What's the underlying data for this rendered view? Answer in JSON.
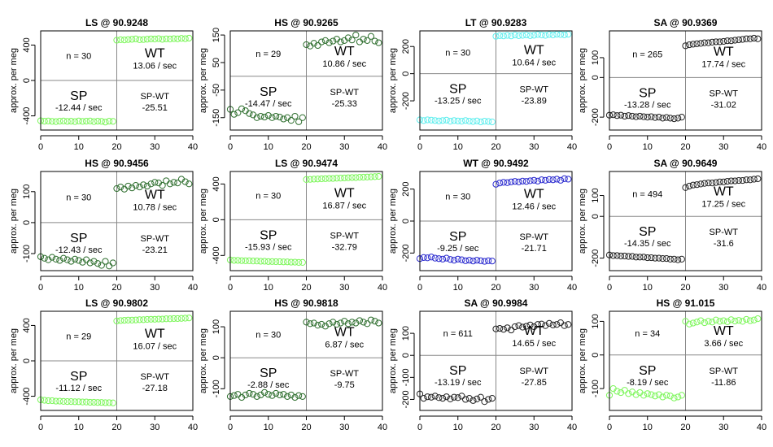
{
  "figure": {
    "ylabel": "approx. per meg",
    "x_ticks": [
      "0",
      "10",
      "20",
      "30",
      "40"
    ],
    "xlim": [
      0,
      40
    ],
    "split_x": 20,
    "colors": {
      "light_green": "#7CF65A",
      "dark_green": "#2E6E2E",
      "cyan": "#5FEEEE",
      "black": "#222222",
      "blue": "#2A2ACF",
      "grid_line": "#888888",
      "frame": "#000000"
    }
  },
  "chart_data": [
    {
      "type": "scatter",
      "title": "LS @ 90.9248",
      "color": "light_green",
      "n_label": "n = 30",
      "wt_label": "WT",
      "wt_rate": "13.06 / sec",
      "sp_label": "SP",
      "sp_rate": "-12.44 / sec",
      "spwt_label": "SP-WT",
      "spwt_value": "-25.51",
      "ylim": [
        -560,
        560
      ],
      "y_ticks": [
        -400,
        0,
        400
      ],
      "left_values": [
        -455,
        -460,
        -458,
        -462,
        -465,
        -460,
        -458,
        -462,
        -460,
        -465,
        -458,
        -462,
        -460,
        -458,
        -465,
        -460,
        -462,
        -470,
        -460,
        -462
      ],
      "right_values": [
        455,
        460,
        458,
        462,
        465,
        470,
        460,
        462,
        466,
        470,
        468,
        472,
        465,
        470,
        468,
        472,
        470,
        475,
        472,
        478
      ]
    },
    {
      "type": "scatter",
      "title": "HS @ 90.9265",
      "color": "dark_green",
      "n_label": "n = 29",
      "wt_label": "WT",
      "wt_rate": "10.86 / sec",
      "sp_label": "SP",
      "sp_rate": "-14.47 / sec",
      "spwt_label": "SP-WT",
      "spwt_value": "-25.33",
      "ylim": [
        -195,
        165
      ],
      "y_ticks": [
        -150,
        -50,
        50,
        150
      ],
      "left_values": [
        -120,
        -138,
        -132,
        -118,
        -125,
        -135,
        -140,
        -150,
        -145,
        -148,
        -142,
        -150,
        -145,
        -148,
        -155,
        -150,
        -160,
        -145,
        -165,
        -150
      ],
      "right_values": [
        115,
        110,
        120,
        112,
        125,
        130,
        122,
        128,
        135,
        125,
        130,
        140,
        132,
        150,
        125,
        135,
        130,
        145,
        128,
        122
      ]
    },
    {
      "type": "scatter",
      "title": "LT @ 90.9283",
      "color": "cyan",
      "n_label": "n = 30",
      "wt_label": "WT",
      "wt_rate": "10.64 / sec",
      "sp_label": "SP",
      "sp_rate": "-13.25 / sec",
      "spwt_label": "SP-WT",
      "spwt_value": "-23.89",
      "ylim": [
        -415,
        315
      ],
      "y_ticks": [
        -200,
        0,
        200
      ],
      "left_values": [
        -340,
        -345,
        -340,
        -342,
        -345,
        -348,
        -345,
        -342,
        -350,
        -345,
        -348,
        -350,
        -345,
        -350,
        -352,
        -348,
        -355,
        -350,
        -352,
        -355
      ],
      "right_values": [
        275,
        280,
        278,
        282,
        278,
        285,
        280,
        282,
        285,
        280,
        283,
        288,
        285,
        282,
        288,
        285,
        290,
        288,
        286,
        290
      ]
    },
    {
      "type": "scatter",
      "title": "SA @ 90.9369",
      "color": "black",
      "n_label": "n = 265",
      "wt_label": "WT",
      "wt_rate": "17.74 / sec",
      "sp_label": "SP",
      "sp_rate": "-13.28 / sec",
      "spwt_label": "SP-WT",
      "spwt_value": "-31.02",
      "ylim": [
        -265,
        235
      ],
      "y_ticks": [
        -200,
        0,
        100
      ],
      "left_values": [
        -190,
        -188,
        -192,
        -190,
        -195,
        -192,
        -195,
        -198,
        -195,
        -198,
        -200,
        -198,
        -202,
        -200,
        -205,
        -202,
        -205,
        -208,
        -205,
        -200
      ],
      "right_values": [
        160,
        165,
        168,
        170,
        172,
        175,
        175,
        178,
        180,
        180,
        182,
        185,
        185,
        188,
        190,
        192,
        195,
        195,
        198,
        195
      ]
    },
    {
      "type": "scatter",
      "title": "HS @ 90.9456",
      "color": "dark_green",
      "n_label": "n = 30",
      "wt_label": "WT",
      "wt_rate": "10.78 / sec",
      "sp_label": "SP",
      "sp_rate": "-12.43 / sec",
      "spwt_label": "SP-WT",
      "spwt_value": "-23.21",
      "ylim": [
        -155,
        165
      ],
      "y_ticks": [
        -100,
        0,
        100
      ],
      "left_values": [
        -110,
        -115,
        -120,
        -112,
        -118,
        -122,
        -115,
        -120,
        -125,
        -118,
        -122,
        -128,
        -120,
        -130,
        -125,
        -132,
        -138,
        -125,
        -140,
        -130
      ],
      "right_values": [
        110,
        115,
        108,
        118,
        112,
        120,
        115,
        122,
        118,
        125,
        130,
        128,
        120,
        135,
        125,
        130,
        128,
        140,
        132,
        125
      ]
    },
    {
      "type": "scatter",
      "title": "LS @ 90.9474",
      "color": "light_green",
      "n_label": "n = 30",
      "wt_label": "WT",
      "wt_rate": "16.87 / sec",
      "sp_label": "SP",
      "sp_rate": "-15.93 / sec",
      "spwt_label": "SP-WT",
      "spwt_value": "-32.79",
      "ylim": [
        -570,
        540
      ],
      "y_ticks": [
        -400,
        0,
        400
      ],
      "left_values": [
        -450,
        -455,
        -455,
        -458,
        -460,
        -460,
        -462,
        -462,
        -465,
        -465,
        -468,
        -468,
        -470,
        -470,
        -472,
        -472,
        -475,
        -475,
        -478,
        -478
      ],
      "right_values": [
        450,
        452,
        455,
        456,
        458,
        460,
        462,
        462,
        465,
        466,
        468,
        470,
        472,
        472,
        475,
        476,
        478,
        480,
        482,
        485
      ]
    },
    {
      "type": "scatter",
      "title": "WT @ 90.9492",
      "color": "blue",
      "n_label": "n = 30",
      "wt_label": "WT",
      "wt_rate": "12.46 / sec",
      "sp_label": "SP",
      "sp_rate": "-9.25 / sec",
      "spwt_label": "SP-WT",
      "spwt_value": "-21.71",
      "ylim": [
        -310,
        310
      ],
      "y_ticks": [
        -200,
        0,
        200
      ],
      "left_values": [
        -235,
        -228,
        -230,
        -225,
        -232,
        -235,
        -238,
        -232,
        -240,
        -245,
        -238,
        -242,
        -248,
        -245,
        -250,
        -245,
        -248,
        -252,
        -248,
        -250
      ],
      "right_values": [
        230,
        238,
        242,
        240,
        245,
        248,
        245,
        250,
        248,
        252,
        255,
        250,
        258,
        255,
        260,
        258,
        262,
        255,
        265,
        262
      ]
    },
    {
      "type": "scatter",
      "title": "SA @ 90.9649",
      "color": "black",
      "n_label": "n = 494",
      "wt_label": "WT",
      "wt_rate": "17.25 / sec",
      "sp_label": "SP",
      "sp_rate": "-14.35 / sec",
      "spwt_label": "SP-WT",
      "spwt_value": "-31.6",
      "ylim": [
        -260,
        215
      ],
      "y_ticks": [
        -200,
        0,
        100
      ],
      "left_values": [
        -185,
        -188,
        -188,
        -190,
        -190,
        -192,
        -192,
        -195,
        -195,
        -195,
        -198,
        -198,
        -200,
        -200,
        -202,
        -202,
        -205,
        -205,
        -208,
        -205
      ],
      "right_values": [
        138,
        145,
        150,
        152,
        155,
        158,
        160,
        160,
        162,
        165,
        165,
        168,
        170,
        170,
        172,
        172,
        175,
        175,
        178,
        180
      ]
    },
    {
      "type": "scatter",
      "title": "LS @ 90.9802",
      "color": "light_green",
      "n_label": "n = 29",
      "wt_label": "WT",
      "wt_rate": "16.07 / sec",
      "sp_label": "SP",
      "sp_rate": "-11.12 / sec",
      "spwt_label": "SP-WT",
      "spwt_value": "-27.18",
      "ylim": [
        -560,
        560
      ],
      "y_ticks": [
        -400,
        0,
        400
      ],
      "left_values": [
        -440,
        -445,
        -450,
        -450,
        -455,
        -455,
        -458,
        -460,
        -460,
        -462,
        -462,
        -465,
        -465,
        -468,
        -468,
        -470,
        -470,
        -472,
        -472,
        -475
      ],
      "right_values": [
        450,
        455,
        458,
        460,
        460,
        462,
        465,
        465,
        468,
        470,
        470,
        472,
        472,
        475,
        475,
        478,
        478,
        480,
        482,
        485
      ]
    },
    {
      "type": "scatter",
      "title": "HS @ 90.9818",
      "color": "dark_green",
      "n_label": "n = 30",
      "wt_label": "WT",
      "wt_rate": "6.87 / sec",
      "sp_label": "SP",
      "sp_rate": "-2.88 / sec",
      "spwt_label": "SP-WT",
      "spwt_value": "-9.75",
      "ylim": [
        -170,
        150
      ],
      "y_ticks": [
        -100,
        0,
        100
      ],
      "left_values": [
        -125,
        -122,
        -118,
        -128,
        -120,
        -115,
        -118,
        -125,
        -120,
        -112,
        -118,
        -122,
        -115,
        -120,
        -118,
        -125,
        -120,
        -128,
        -122,
        -125
      ],
      "right_values": [
        115,
        110,
        112,
        105,
        108,
        102,
        110,
        115,
        108,
        112,
        118,
        110,
        115,
        112,
        120,
        115,
        110,
        122,
        118,
        112
      ]
    },
    {
      "type": "scatter",
      "title": "SA @ 90.9984",
      "color": "black",
      "n_label": "n = 611",
      "wt_label": "WT",
      "wt_rate": "14.65 / sec",
      "sp_label": "SP",
      "sp_rate": "-13.19 / sec",
      "spwt_label": "SP-WT",
      "spwt_value": "-27.85",
      "ylim": [
        -250,
        200
      ],
      "y_ticks": [
        -200,
        -100,
        0,
        100
      ],
      "left_values": [
        -175,
        -195,
        -188,
        -190,
        -185,
        -192,
        -195,
        -188,
        -198,
        -190,
        -192,
        -185,
        -200,
        -195,
        -205,
        -198,
        -190,
        -210,
        -200,
        -195
      ],
      "right_values": [
        120,
        122,
        118,
        125,
        115,
        130,
        135,
        128,
        132,
        138,
        130,
        140,
        142,
        135,
        145,
        138,
        140,
        148,
        135,
        140
      ]
    },
    {
      "type": "scatter",
      "title": "HS @ 91.015",
      "color": "light_green",
      "n_label": "n = 34",
      "wt_label": "WT",
      "wt_rate": "3.66 / sec",
      "sp_label": "SP",
      "sp_rate": "-8.19 / sec",
      "spwt_label": "SP-WT",
      "spwt_value": "-11.86",
      "ylim": [
        -165,
        130
      ],
      "y_ticks": [
        -100,
        0,
        100
      ],
      "left_values": [
        -120,
        -100,
        -108,
        -112,
        -105,
        -115,
        -110,
        -118,
        -112,
        -120,
        -115,
        -118,
        -122,
        -118,
        -125,
        -120,
        -122,
        -128,
        -125,
        -120
      ],
      "right_values": [
        100,
        92,
        95,
        98,
        102,
        96,
        100,
        98,
        104,
        100,
        102,
        99,
        105,
        101,
        103,
        100,
        106,
        102,
        104,
        108
      ]
    }
  ]
}
